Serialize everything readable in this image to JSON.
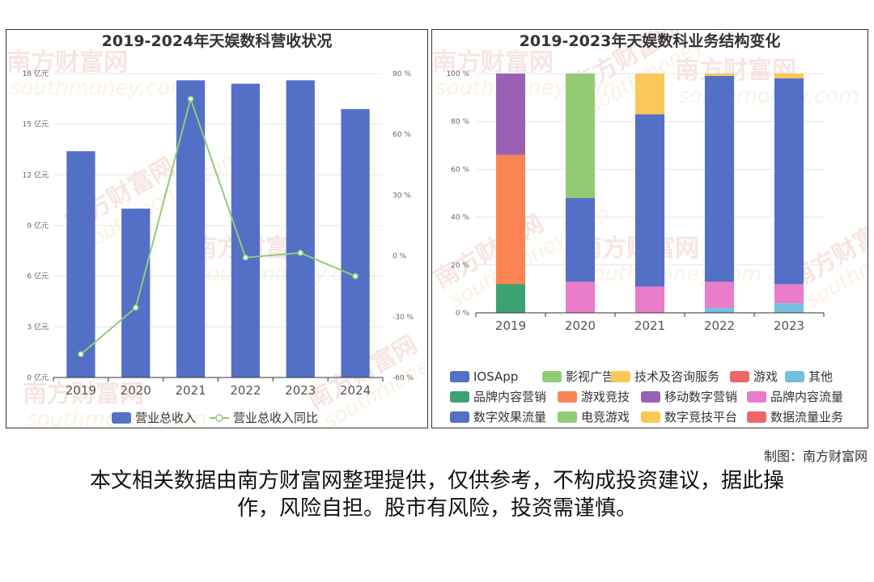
{
  "watermark": {
    "text_cn": "南方财富网",
    "text_en": "southmoney.com"
  },
  "left_chart": {
    "title": "2019-2024年天娱数科营收状况",
    "legend": [
      "营业总收入",
      "营业总收入同比"
    ]
  },
  "right_chart": {
    "title": "2019-2023年天娱数科业务结构变化",
    "legend": [
      "IOSApp",
      "影视广告",
      "技术及咨询服务",
      "游戏",
      "其他",
      "品牌内容营销",
      "游戏竞技",
      "移动数字营销",
      "品牌内容流量",
      "数字效果流量",
      "电竞游戏",
      "数字竞技平台",
      "数据流量业务"
    ]
  },
  "credit": "制图：南方财富网",
  "disclaimer": {
    "line1": "本文相关数据由南方财富网整理提供，仅供参考，不构成投资建议，据此操",
    "line2": "作，风险自担。股市有风险，投资需谨慎。"
  },
  "chart_data": [
    {
      "type": "bar",
      "title": "2019-2024年天娱数科营收状况",
      "categories": [
        "2019",
        "2020",
        "2021",
        "2022",
        "2023",
        "2024"
      ],
      "series": [
        {
          "name": "营业总收入",
          "type": "bar",
          "axis": "left",
          "color": "#5470c6",
          "values": [
            13.4,
            10.0,
            17.6,
            17.4,
            17.6,
            15.9
          ]
        },
        {
          "name": "营业总收入同比",
          "type": "line",
          "axis": "right",
          "color": "#91cc75",
          "values": [
            -48.5,
            -25.5,
            77.5,
            -0.8,
            1.5,
            -10.0
          ]
        }
      ],
      "y_left": {
        "min": 0,
        "max": 18,
        "ticks": [
          0,
          3,
          6,
          9,
          12,
          15,
          18
        ],
        "unit": "亿元"
      },
      "y_right": {
        "min": -60,
        "max": 90,
        "ticks": [
          -60,
          -30,
          0,
          30,
          60,
          90
        ],
        "unit": "%"
      },
      "legend_position": "bottom"
    },
    {
      "type": "bar",
      "stacked": true,
      "title": "2019-2023年天娱数科业务结构变化",
      "categories": [
        "2019",
        "2020",
        "2021",
        "2022",
        "2023"
      ],
      "series": [
        {
          "name": "IOSApp",
          "color": "#5470c6",
          "values": [
            0,
            0,
            0,
            0,
            0
          ]
        },
        {
          "name": "影视广告",
          "color": "#91cc75",
          "values": [
            0,
            0,
            0,
            0,
            0
          ]
        },
        {
          "name": "技术及咨询服务",
          "color": "#fac858",
          "values": [
            0,
            0,
            0,
            0,
            0
          ]
        },
        {
          "name": "游戏",
          "color": "#ee6666",
          "values": [
            0,
            0,
            0,
            0,
            0
          ]
        },
        {
          "name": "其他",
          "color": "#73c0de",
          "values": [
            0,
            0,
            0,
            2,
            4
          ]
        },
        {
          "name": "品牌内容营销",
          "color": "#3ba272",
          "values": [
            12,
            0,
            0,
            0,
            0
          ]
        },
        {
          "name": "游戏竞技",
          "color": "#fc8452",
          "values": [
            54,
            0,
            0,
            0,
            0
          ]
        },
        {
          "name": "移动数字营销",
          "color": "#9a60b4",
          "values": [
            34,
            0,
            0,
            0,
            0
          ]
        },
        {
          "name": "品牌内容流量",
          "color": "#ea7ccc",
          "values": [
            0,
            13,
            11,
            11,
            8
          ]
        },
        {
          "name": "数字效果流量",
          "color": "#5470c6",
          "values": [
            0,
            35,
            72,
            86,
            86
          ]
        },
        {
          "name": "电竞游戏",
          "color": "#91cc75",
          "values": [
            0,
            52,
            0,
            0,
            0
          ]
        },
        {
          "name": "数字竞技平台",
          "color": "#fac858",
          "values": [
            0,
            0,
            17,
            1,
            2
          ]
        },
        {
          "name": "数据流量业务",
          "color": "#ee6666",
          "values": [
            0,
            0,
            0,
            0,
            0
          ]
        }
      ],
      "y": {
        "min": 0,
        "max": 100,
        "ticks": [
          0,
          20,
          40,
          60,
          80,
          100
        ],
        "unit": "%"
      },
      "legend_position": "bottom"
    }
  ]
}
